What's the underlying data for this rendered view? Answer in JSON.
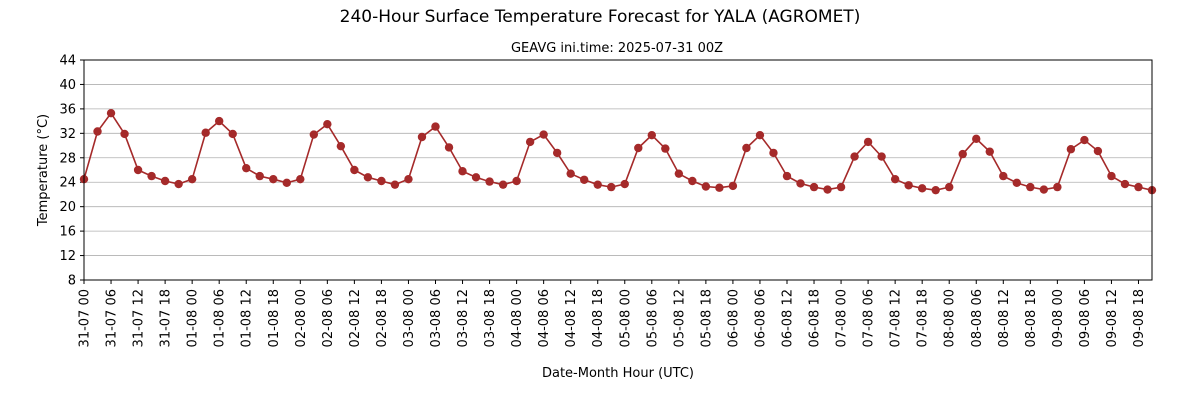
{
  "chart_data": {
    "type": "line",
    "title": "240-Hour Surface Temperature Forecast for YALA (AGROMET)",
    "subtitle": "GEAVG ini.time: 2025-07-31 00Z",
    "xlabel": "Date-Month Hour (UTC)",
    "ylabel": "Temperature (°C)",
    "ylim": [
      8,
      44
    ],
    "yticks": [
      8,
      12,
      16,
      20,
      24,
      28,
      32,
      36,
      40,
      44
    ],
    "grid": "horizontal",
    "color": "#a52a2a",
    "x_start_label": "31-07 00",
    "x_step_hours": 3,
    "xtick_labels": [
      "31-07 00",
      "31-07 06",
      "31-07 12",
      "31-07 18",
      "01-08 00",
      "01-08 06",
      "01-08 12",
      "01-08 18",
      "02-08 00",
      "02-08 06",
      "02-08 12",
      "02-08 18",
      "03-08 00",
      "03-08 06",
      "03-08 12",
      "03-08 18",
      "04-08 00",
      "04-08 06",
      "04-08 12",
      "04-08 18",
      "05-08 00",
      "05-08 06",
      "05-08 12",
      "05-08 18",
      "06-08 00",
      "06-08 06",
      "06-08 12",
      "06-08 18",
      "07-08 00",
      "07-08 06",
      "07-08 12",
      "07-08 18",
      "08-08 00",
      "08-08 06",
      "08-08 12",
      "08-08 18",
      "09-08 00",
      "09-08 06",
      "09-08 12",
      "09-08 18"
    ],
    "series": [
      {
        "values": [
          24.5,
          32.3,
          35.3,
          31.9,
          26.0,
          25.0,
          24.2,
          23.7,
          24.5,
          32.1,
          34.0,
          31.9,
          26.3,
          25.0,
          24.5,
          23.9,
          24.5,
          31.8,
          33.5,
          29.9,
          26.0,
          24.8,
          24.2,
          23.6,
          24.5,
          31.4,
          33.1,
          29.7,
          25.8,
          24.8,
          24.1,
          23.6,
          24.2,
          30.6,
          31.8,
          28.8,
          25.4,
          24.4,
          23.6,
          23.2,
          23.7,
          29.6,
          31.7,
          29.5,
          25.4,
          24.2,
          23.3,
          23.1,
          23.4,
          29.6,
          31.7,
          28.8,
          25.0,
          23.8,
          23.2,
          22.8,
          23.2,
          28.2,
          30.6,
          28.2,
          24.5,
          23.5,
          23.0,
          22.7,
          23.2,
          28.6,
          31.1,
          29.0,
          25.0,
          23.9,
          23.2,
          22.8,
          23.2,
          29.4,
          30.9,
          29.1,
          25.0,
          23.7,
          23.2,
          22.7
        ]
      }
    ]
  }
}
